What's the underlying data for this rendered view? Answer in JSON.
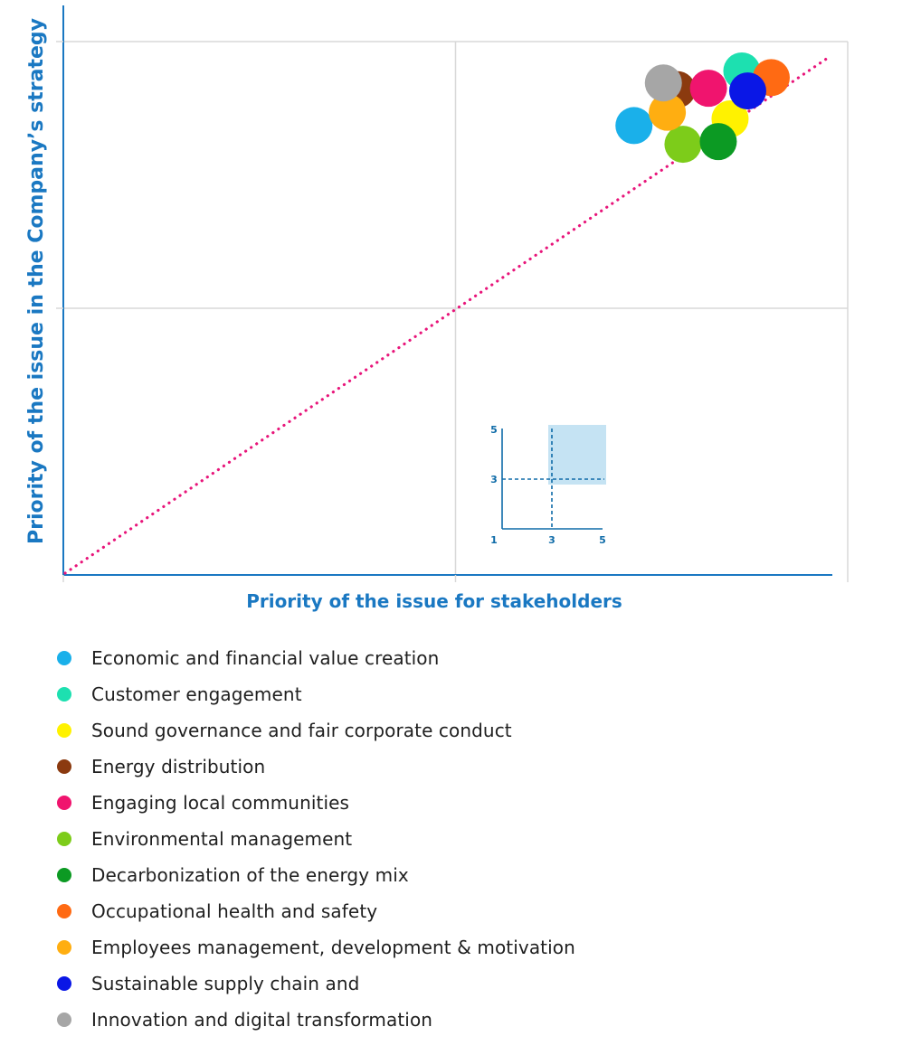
{
  "chart_data": {
    "type": "scatter",
    "xlabel": "Priority of the issue for stakeholders",
    "ylabel": "Priority of the issue in the Company’s strategy",
    "xlim": [
      1,
      5
    ],
    "ylim": [
      1,
      5
    ],
    "grid": true,
    "reference_line": {
      "style": "dotted",
      "color": "#e8157a",
      "from": [
        1,
        1
      ],
      "to": [
        5,
        5
      ]
    },
    "series": [
      {
        "name": "Economic and financial value creation",
        "color": "#1ab0ea",
        "x": 3.91,
        "y": 4.37
      },
      {
        "name": "Customer engagement",
        "color": "#1de0b0",
        "x": 4.46,
        "y": 4.78
      },
      {
        "name": "Sound governance and fair corporate conduct",
        "color": "#fff200",
        "x": 4.4,
        "y": 4.42
      },
      {
        "name": "Energy distribution",
        "color": "#8b3a0f",
        "x": 4.13,
        "y": 4.64
      },
      {
        "name": "Engaging local communities",
        "color": "#f0146e",
        "x": 4.29,
        "y": 4.65
      },
      {
        "name": "Environmental management",
        "color": "#7dcc1a",
        "x": 4.16,
        "y": 4.23
      },
      {
        "name": "Decarbonization of the energy mix",
        "color": "#0c9a23",
        "x": 4.34,
        "y": 4.25
      },
      {
        "name": "Occupational health and safety",
        "color": "#ff6a13",
        "x": 4.61,
        "y": 4.73
      },
      {
        "name": "Employees management, development & motivation",
        "color": "#ffae11",
        "x": 4.08,
        "y": 4.47
      },
      {
        "name": "Sustainable supply chain and",
        "color": "#0a17e6",
        "x": 4.49,
        "y": 4.63
      },
      {
        "name": "Innovation and digital transformation",
        "color": "#a6a6a6",
        "x": 4.06,
        "y": 4.69
      }
    ],
    "inset": {
      "x_ticks": [
        "1",
        "3",
        "5"
      ],
      "y_ticks": [
        "3",
        "5"
      ]
    }
  },
  "colors": {
    "axis": "#1a78c2",
    "grid": "#d8d8d8",
    "reference_line": "#e8157a",
    "inset_fill": "#c5e3f3"
  }
}
